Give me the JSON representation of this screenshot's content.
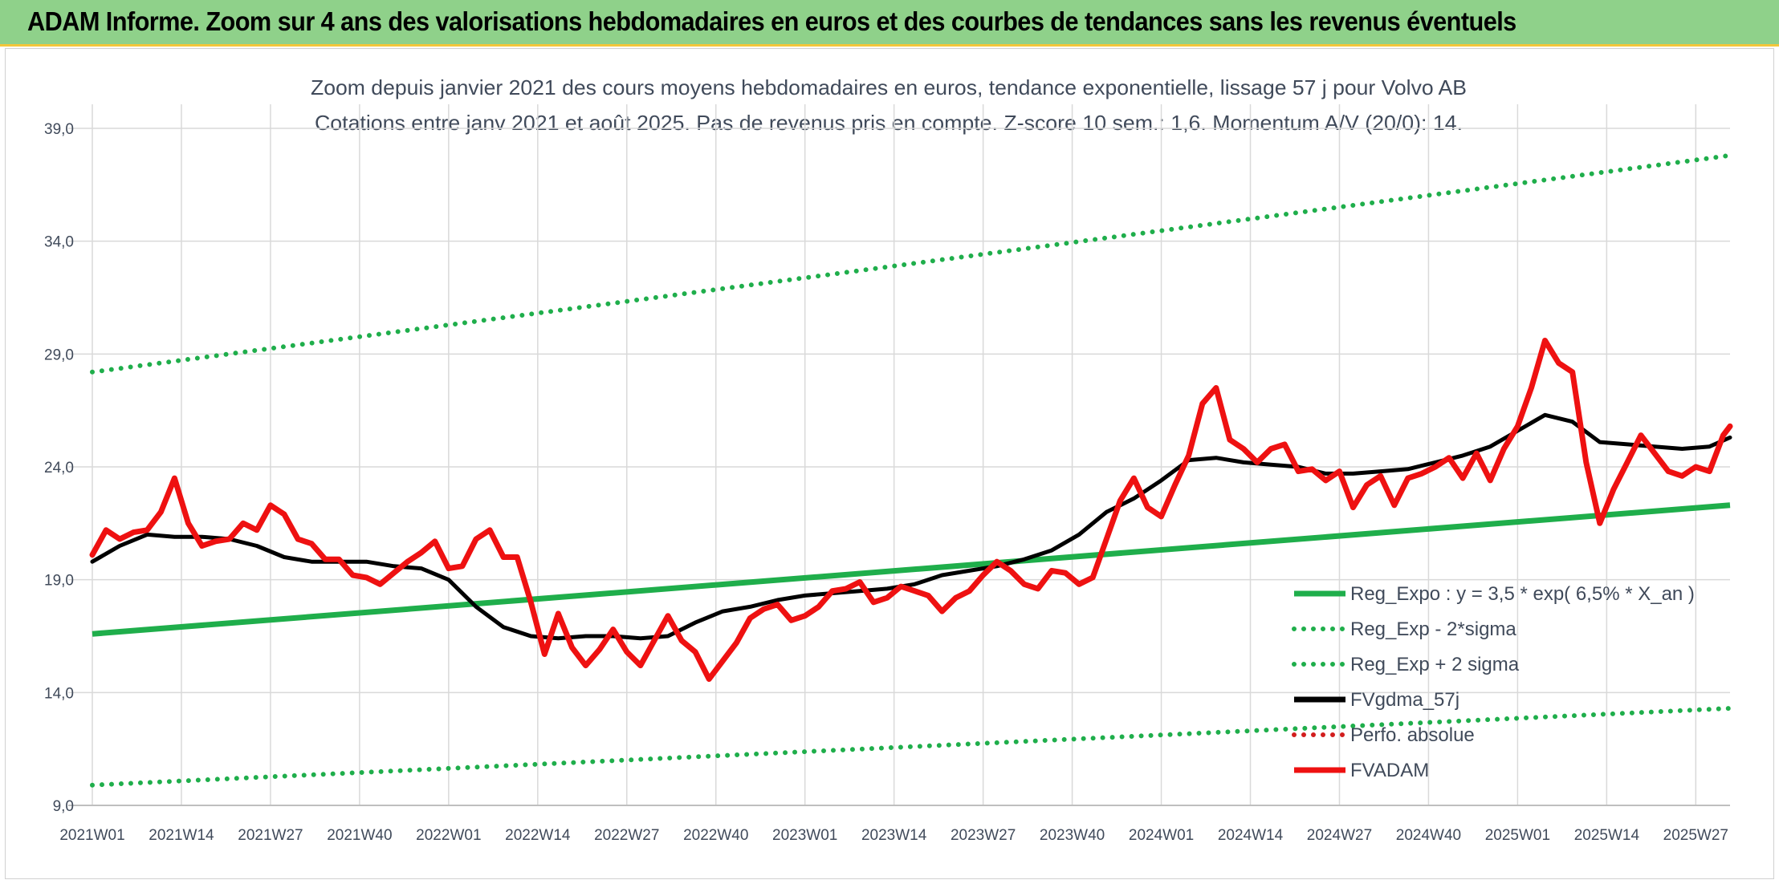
{
  "banner": {
    "title": "ADAM Informe. Zoom sur 4 ans des valorisations hebdomadaires en euros et des courbes de tendances sans les revenus éventuels"
  },
  "colors": {
    "banner_bg": "#8fd18a",
    "banner_border": "#f3c63a",
    "regression": "#1fae4b",
    "moving_average": "#000000",
    "price": "#ee1111",
    "perf": "#d21e1e",
    "grid": "#d9d9d9",
    "text": "#404a5a"
  },
  "chart_data": {
    "type": "line",
    "title": "Zoom depuis janvier 2021 des cours moyens hebdomadaires en euros, tendance exponentielle, lissage 57 j pour Volvo AB",
    "subtitle": "Cotations entre janv 2021 et août 2025. Pas de revenus pris en compte. Z-score 10 sem.: 1,6. Momentum A/V (20/0): 14.",
    "xlabel": "",
    "ylabel": "",
    "ylim": [
      9,
      39
    ],
    "y_ticks": [
      "9,0",
      "14,0",
      "19,0",
      "24,0",
      "29,0",
      "34,0",
      "39,0"
    ],
    "y_tick_values": [
      9,
      14,
      19,
      24,
      29,
      34,
      39
    ],
    "x_ticks": [
      "2021W01",
      "2021W14",
      "2021W27",
      "2021W40",
      "2022W01",
      "2022W14",
      "2022W27",
      "2022W40",
      "2023W01",
      "2023W14",
      "2023W27",
      "2023W40",
      "2024W01",
      "2024W14",
      "2024W27",
      "2024W40",
      "2025W01",
      "2025W14",
      "2025W27"
    ],
    "grid": true,
    "legend_position": "bottom-right",
    "series": [
      {
        "name": "Reg_Expo : y = 3,5 * exp( 6,5% *  X_an )",
        "style": "solid",
        "color": "#1fae4b",
        "x": [
          0,
          239
        ],
        "values": [
          16.6,
          22.3
        ]
      },
      {
        "name": "Reg_Exp - 2*sigma",
        "style": "dotted",
        "color": "#1fae4b",
        "x": [
          0,
          239
        ],
        "values": [
          9.9,
          13.3
        ]
      },
      {
        "name": "Reg_Exp + 2 sigma",
        "style": "dotted",
        "color": "#1fae4b",
        "x": [
          0,
          239
        ],
        "values": [
          28.2,
          37.8
        ]
      },
      {
        "name": "FVgdma_57j",
        "style": "solid",
        "color": "#000000",
        "x": [
          0,
          4,
          8,
          12,
          16,
          20,
          24,
          28,
          32,
          36,
          40,
          44,
          48,
          52,
          56,
          60,
          64,
          68,
          72,
          76,
          80,
          84,
          88,
          92,
          96,
          100,
          104,
          108,
          112,
          116,
          120,
          124,
          128,
          132,
          136,
          140,
          144,
          148,
          152,
          156,
          160,
          164,
          168,
          172,
          176,
          180,
          184,
          188,
          192,
          196,
          200,
          204,
          208,
          212,
          216,
          220,
          224,
          228,
          232,
          236,
          239
        ],
        "values": [
          19.8,
          20.5,
          21.0,
          20.9,
          20.9,
          20.8,
          20.5,
          20.0,
          19.8,
          19.8,
          19.8,
          19.6,
          19.5,
          19.0,
          17.8,
          16.9,
          16.5,
          16.4,
          16.5,
          16.5,
          16.4,
          16.5,
          17.1,
          17.6,
          17.8,
          18.1,
          18.3,
          18.4,
          18.5,
          18.6,
          18.8,
          19.2,
          19.4,
          19.6,
          19.9,
          20.3,
          21.0,
          22.0,
          22.6,
          23.4,
          24.3,
          24.4,
          24.2,
          24.1,
          24.0,
          23.7,
          23.7,
          23.8,
          23.9,
          24.2,
          24.5,
          24.9,
          25.6,
          26.3,
          26.0,
          25.1,
          25.0,
          24.9,
          24.8,
          24.9,
          25.3
        ]
      },
      {
        "name": "Perfo. absolue",
        "style": "dotted",
        "color": "#d21e1e",
        "x": [],
        "values": []
      },
      {
        "name": "FVADAM",
        "style": "solid",
        "color": "#ee1111",
        "x": [
          0,
          2,
          4,
          6,
          8,
          10,
          12,
          14,
          16,
          18,
          20,
          22,
          24,
          26,
          28,
          30,
          32,
          34,
          36,
          38,
          40,
          42,
          44,
          46,
          48,
          50,
          52,
          54,
          56,
          58,
          60,
          62,
          64,
          66,
          68,
          70,
          72,
          74,
          76,
          78,
          80,
          82,
          84,
          86,
          88,
          90,
          92,
          94,
          96,
          98,
          100,
          102,
          104,
          106,
          108,
          110,
          112,
          114,
          116,
          118,
          120,
          122,
          124,
          126,
          128,
          130,
          132,
          134,
          136,
          138,
          140,
          142,
          144,
          146,
          148,
          150,
          152,
          154,
          156,
          158,
          160,
          162,
          164,
          166,
          168,
          170,
          172,
          174,
          176,
          178,
          180,
          182,
          184,
          186,
          188,
          190,
          192,
          194,
          196,
          198,
          200,
          202,
          204,
          206,
          208,
          210,
          212,
          214,
          216,
          218,
          220,
          222,
          224,
          226,
          228,
          230,
          232,
          234,
          236,
          238,
          239
        ],
        "values": [
          20.1,
          21.2,
          20.8,
          21.1,
          21.2,
          22.0,
          23.5,
          21.5,
          20.5,
          20.7,
          20.8,
          21.5,
          21.2,
          22.3,
          21.9,
          20.8,
          20.6,
          19.9,
          19.9,
          19.2,
          19.1,
          18.8,
          19.3,
          19.8,
          20.2,
          20.7,
          19.5,
          19.6,
          20.8,
          21.2,
          20.0,
          20.0,
          18.0,
          15.7,
          17.5,
          16.0,
          15.2,
          15.9,
          16.8,
          15.8,
          15.2,
          16.3,
          17.4,
          16.3,
          15.8,
          14.6,
          15.4,
          16.2,
          17.3,
          17.7,
          17.9,
          17.2,
          17.4,
          17.8,
          18.5,
          18.6,
          18.9,
          18.0,
          18.2,
          18.7,
          18.5,
          18.3,
          17.6,
          18.2,
          18.5,
          19.2,
          19.8,
          19.4,
          18.8,
          18.6,
          19.4,
          19.3,
          18.8,
          19.1,
          20.8,
          22.5,
          23.5,
          22.2,
          21.8,
          23.2,
          24.5,
          26.8,
          27.5,
          25.2,
          24.8,
          24.2,
          24.8,
          25.0,
          23.8,
          23.9,
          23.4,
          23.8,
          22.2,
          23.2,
          23.6,
          22.3,
          23.5,
          23.7,
          24.0,
          24.4,
          23.5,
          24.6,
          23.4,
          24.8,
          25.8,
          27.5,
          29.6,
          28.6,
          28.2,
          24.2,
          21.5,
          23.0,
          24.2,
          25.4,
          24.6,
          23.8,
          23.6,
          24.0,
          23.8,
          25.4,
          25.8
        ]
      }
    ]
  }
}
